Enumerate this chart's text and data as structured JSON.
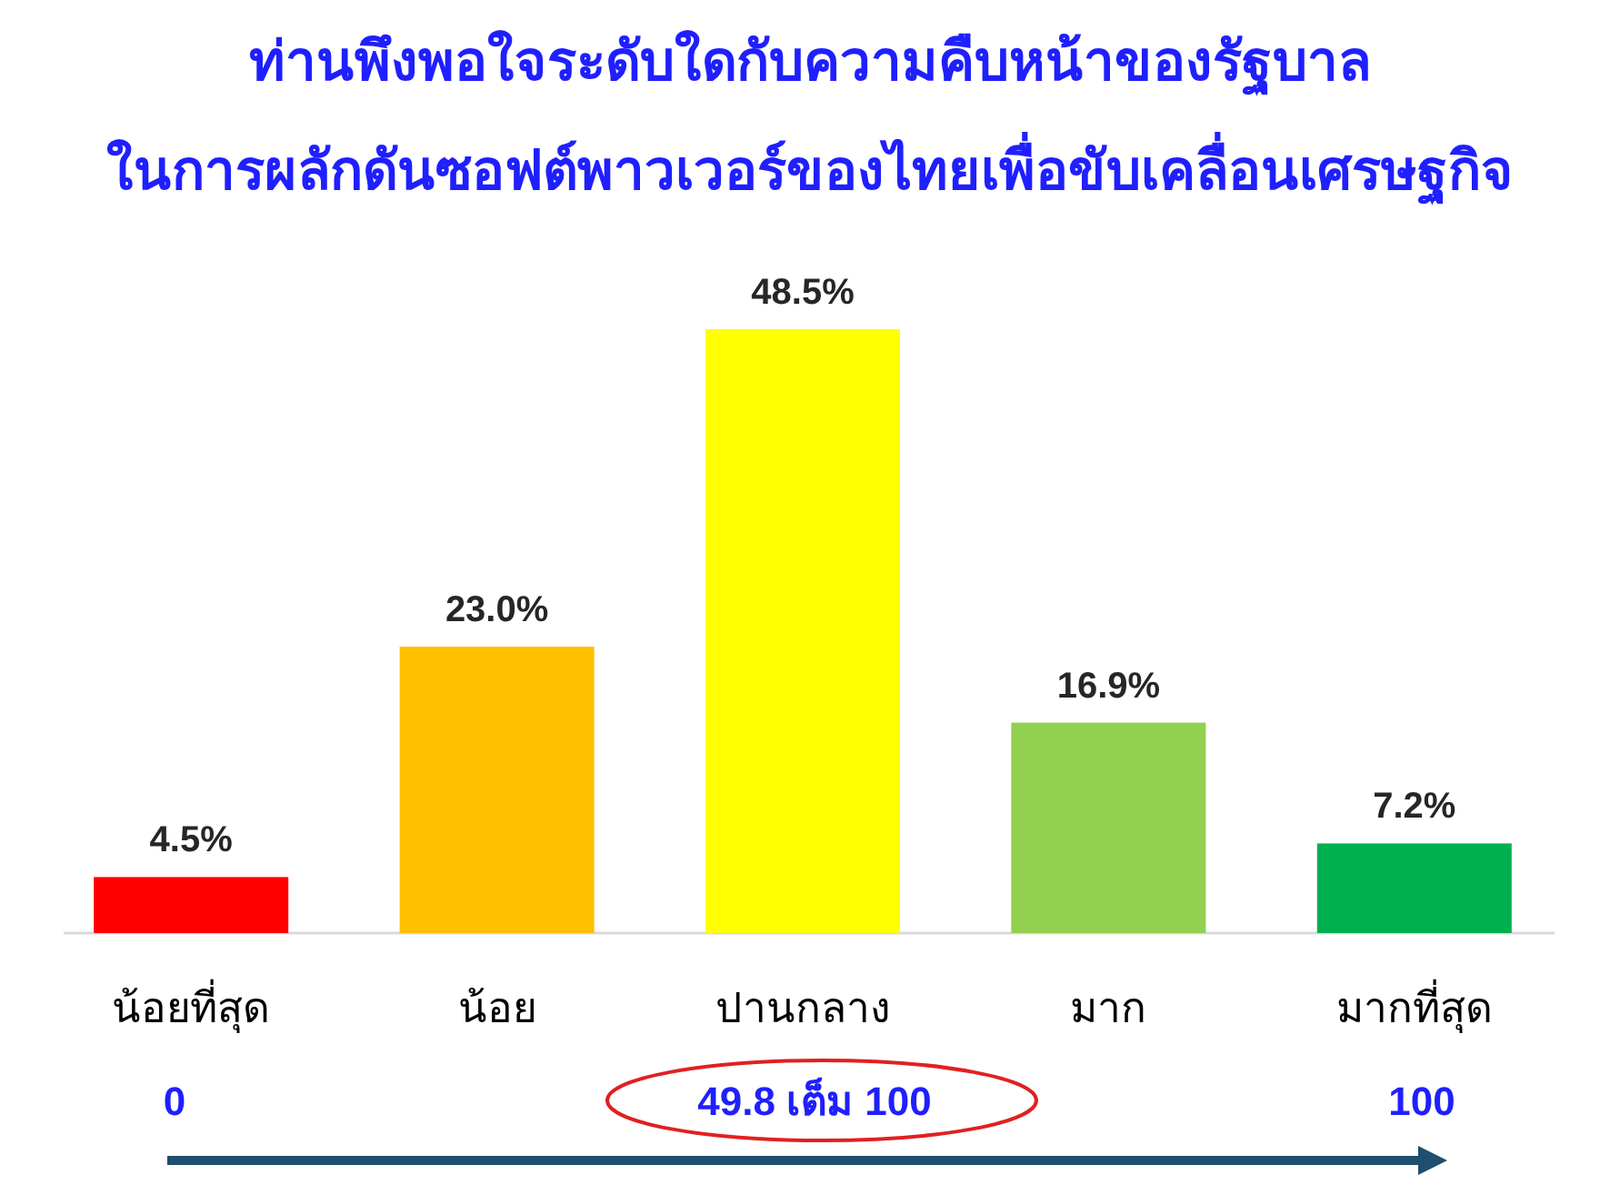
{
  "chart_data": {
    "type": "bar",
    "title": "ท่านพึงพอใจระดับใดกับความคืบหน้าของรัฐบาล",
    "subtitle": "ในการผลักดันซอฟต์พาวเวอร์ของไทยเพื่อขับเคลื่อนเศรษฐกิจ",
    "categories": [
      "น้อยที่สุด",
      "น้อย",
      "ปานกลาง",
      "มาก",
      "มากที่สุด"
    ],
    "values": [
      4.5,
      23.0,
      48.5,
      16.9,
      7.2
    ],
    "value_labels": [
      "4.5%",
      "23.0%",
      "48.5%",
      "16.9%",
      "7.2%"
    ],
    "colors": [
      "#ff0000",
      "#ffc000",
      "#ffff00",
      "#92d050",
      "#00b050"
    ],
    "annotations": [
      "0",
      "49.8 เต็ม 100",
      "100"
    ]
  }
}
